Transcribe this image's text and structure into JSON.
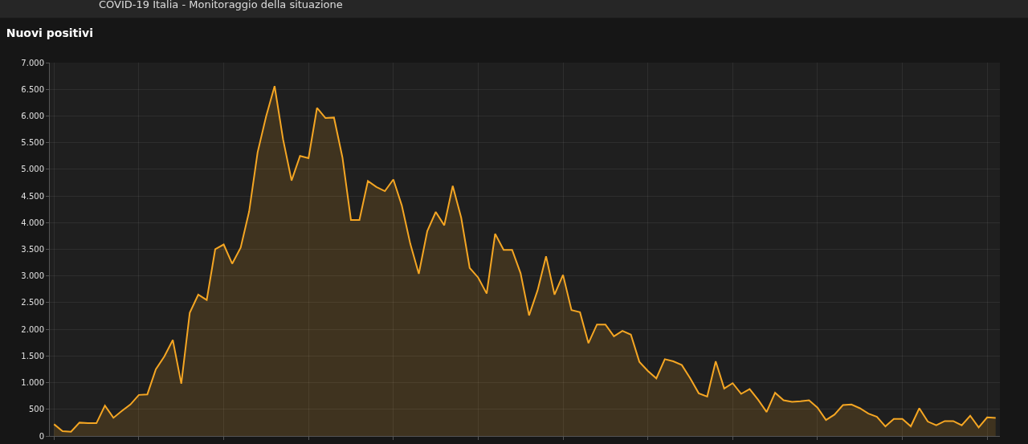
{
  "chart_data": {
    "type": "area",
    "title": "Nuovi positivi",
    "annotations": [
      "COVID-19 Italia - Monitoraggio della situazione"
    ],
    "categories": [
      null,
      null,
      null,
      null,
      null,
      null,
      null,
      null,
      null,
      null,
      null,
      null,
      null,
      null,
      null,
      null,
      null,
      null,
      null,
      null,
      null,
      null,
      null,
      null,
      null,
      null,
      null,
      null,
      null,
      null,
      null,
      null,
      null,
      null,
      null,
      null,
      null,
      null,
      null,
      null,
      null,
      null,
      null,
      null,
      null,
      null,
      null,
      null,
      null,
      null,
      null,
      null,
      null,
      null,
      null,
      null,
      null,
      null,
      null,
      null,
      null,
      null,
      null,
      null,
      null,
      null,
      null,
      null,
      null,
      null,
      null,
      null,
      null,
      null,
      null,
      null,
      null,
      null,
      null,
      null,
      null,
      null,
      null,
      null,
      null,
      null,
      null,
      null,
      null,
      null,
      null,
      null,
      null,
      null,
      null,
      null,
      null,
      null,
      null,
      null,
      null,
      null,
      null,
      null,
      null,
      null,
      null,
      null,
      null,
      null,
      null,
      null
    ],
    "series": [
      {
        "color": "#f5a623",
        "values": [
          220,
          90,
          80,
          250,
          240,
          240,
          570,
          340,
          470,
          590,
          770,
          780,
          1250,
          1490,
          1800,
          980,
          2310,
          2650,
          2550,
          3500,
          3590,
          3230,
          3530,
          4210,
          5320,
          5990,
          6560,
          5560,
          4790,
          5250,
          5210,
          6150,
          5960,
          5970,
          5220,
          4050,
          4050,
          4780,
          4670,
          4590,
          4810,
          4320,
          3600,
          3040,
          3840,
          4200,
          3950,
          4690,
          4090,
          3150,
          2970,
          2670,
          3790,
          3490,
          3490,
          3050,
          2260,
          2730,
          3370,
          2650,
          3020,
          2360,
          2320,
          1740,
          2090,
          2090,
          1870,
          1970,
          1900,
          1390,
          1220,
          1080,
          1440,
          1400,
          1330,
          1080,
          800,
          740,
          1400,
          890,
          990,
          790,
          880,
          680,
          450,
          810,
          670,
          640,
          650,
          670,
          530,
          300,
          400,
          580,
          590,
          520,
          420,
          360,
          180,
          320,
          320,
          180,
          520,
          270,
          200,
          280,
          280,
          200,
          380,
          160,
          350,
          340
        ]
      }
    ],
    "ylim": [
      0,
      7000
    ],
    "yticks": [
      0,
      {
        "value": 500,
        "label": "500"
      },
      {
        "value": 1000,
        "label": "1.000"
      },
      {
        "value": 1500,
        "label": "1.500"
      },
      {
        "value": 2000,
        "label": "2.000"
      },
      {
        "value": 2500,
        "label": "2.500"
      },
      {
        "value": 3000,
        "label": "3.000"
      },
      {
        "value": 3500,
        "label": "3.500"
      },
      {
        "value": 4000,
        "label": "4.000"
      },
      {
        "value": 4500,
        "label": "4.500"
      },
      {
        "value": 5000,
        "label": "5.000"
      },
      {
        "value": 5500,
        "label": "5.500"
      },
      {
        "value": 6000,
        "label": "6.000"
      },
      {
        "value": 6500,
        "label": "6.500"
      },
      {
        "value": 7000,
        "label": "7.000"
      }
    ],
    "grid": true,
    "tick_labels": "y",
    "line_style": "solid",
    "marker": "none"
  }
}
